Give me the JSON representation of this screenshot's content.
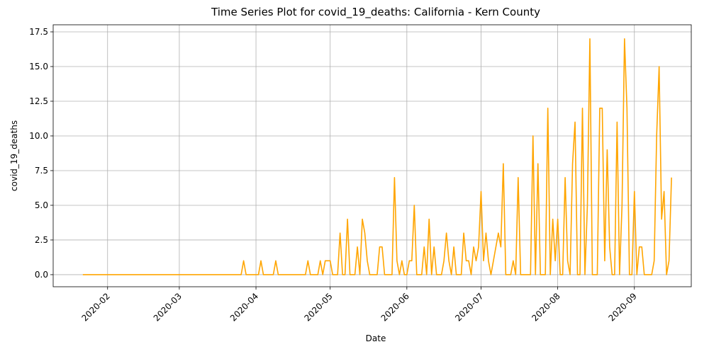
{
  "chart_data": {
    "type": "line",
    "title": "Time Series Plot for covid_19_deaths: California - Kern County",
    "x_label": "Date",
    "y_label": "covid_19_deaths",
    "x": [
      "2020-01-22",
      "2020-01-23",
      "2020-01-24",
      "2020-01-25",
      "2020-01-26",
      "2020-01-27",
      "2020-01-28",
      "2020-01-29",
      "2020-01-30",
      "2020-01-31",
      "2020-02-01",
      "2020-02-02",
      "2020-02-03",
      "2020-02-04",
      "2020-02-05",
      "2020-02-06",
      "2020-02-07",
      "2020-02-08",
      "2020-02-09",
      "2020-02-10",
      "2020-02-11",
      "2020-02-12",
      "2020-02-13",
      "2020-02-14",
      "2020-02-15",
      "2020-02-16",
      "2020-02-17",
      "2020-02-18",
      "2020-02-19",
      "2020-02-20",
      "2020-02-21",
      "2020-02-22",
      "2020-02-23",
      "2020-02-24",
      "2020-02-25",
      "2020-02-26",
      "2020-02-27",
      "2020-02-28",
      "2020-02-29",
      "2020-03-01",
      "2020-03-02",
      "2020-03-03",
      "2020-03-04",
      "2020-03-05",
      "2020-03-06",
      "2020-03-07",
      "2020-03-08",
      "2020-03-09",
      "2020-03-10",
      "2020-03-11",
      "2020-03-12",
      "2020-03-13",
      "2020-03-14",
      "2020-03-15",
      "2020-03-16",
      "2020-03-17",
      "2020-03-18",
      "2020-03-19",
      "2020-03-20",
      "2020-03-21",
      "2020-03-22",
      "2020-03-23",
      "2020-03-24",
      "2020-03-25",
      "2020-03-26",
      "2020-03-27",
      "2020-03-28",
      "2020-03-29",
      "2020-03-30",
      "2020-03-31",
      "2020-04-01",
      "2020-04-02",
      "2020-04-03",
      "2020-04-04",
      "2020-04-05",
      "2020-04-06",
      "2020-04-07",
      "2020-04-08",
      "2020-04-09",
      "2020-04-10",
      "2020-04-11",
      "2020-04-12",
      "2020-04-13",
      "2020-04-14",
      "2020-04-15",
      "2020-04-16",
      "2020-04-17",
      "2020-04-18",
      "2020-04-19",
      "2020-04-20",
      "2020-04-21",
      "2020-04-22",
      "2020-04-23",
      "2020-04-24",
      "2020-04-25",
      "2020-04-26",
      "2020-04-27",
      "2020-04-28",
      "2020-04-29",
      "2020-04-30",
      "2020-05-01",
      "2020-05-02",
      "2020-05-03",
      "2020-05-04",
      "2020-05-05",
      "2020-05-06",
      "2020-05-07",
      "2020-05-08",
      "2020-05-09",
      "2020-05-10",
      "2020-05-11",
      "2020-05-12",
      "2020-05-13",
      "2020-05-14",
      "2020-05-15",
      "2020-05-16",
      "2020-05-17",
      "2020-05-18",
      "2020-05-19",
      "2020-05-20",
      "2020-05-21",
      "2020-05-22",
      "2020-05-23",
      "2020-05-24",
      "2020-05-25",
      "2020-05-26",
      "2020-05-27",
      "2020-05-28",
      "2020-05-29",
      "2020-05-30",
      "2020-05-31",
      "2020-06-01",
      "2020-06-02",
      "2020-06-03",
      "2020-06-04",
      "2020-06-05",
      "2020-06-06",
      "2020-06-07",
      "2020-06-08",
      "2020-06-09",
      "2020-06-10",
      "2020-06-11",
      "2020-06-12",
      "2020-06-13",
      "2020-06-14",
      "2020-06-15",
      "2020-06-16",
      "2020-06-17",
      "2020-06-18",
      "2020-06-19",
      "2020-06-20",
      "2020-06-21",
      "2020-06-22",
      "2020-06-23",
      "2020-06-24",
      "2020-06-25",
      "2020-06-26",
      "2020-06-27",
      "2020-06-28",
      "2020-06-29",
      "2020-06-30",
      "2020-07-01",
      "2020-07-02",
      "2020-07-03",
      "2020-07-04",
      "2020-07-05",
      "2020-07-06",
      "2020-07-07",
      "2020-07-08",
      "2020-07-09",
      "2020-07-10",
      "2020-07-11",
      "2020-07-12",
      "2020-07-13",
      "2020-07-14",
      "2020-07-15",
      "2020-07-16",
      "2020-07-17",
      "2020-07-18",
      "2020-07-19",
      "2020-07-20",
      "2020-07-21",
      "2020-07-22",
      "2020-07-23",
      "2020-07-24",
      "2020-07-25",
      "2020-07-26",
      "2020-07-27",
      "2020-07-28",
      "2020-07-29",
      "2020-07-30",
      "2020-07-31",
      "2020-08-01",
      "2020-08-02",
      "2020-08-03",
      "2020-08-04",
      "2020-08-05",
      "2020-08-06",
      "2020-08-07",
      "2020-08-08",
      "2020-08-09",
      "2020-08-10",
      "2020-08-11",
      "2020-08-12",
      "2020-08-13",
      "2020-08-14",
      "2020-08-15",
      "2020-08-16",
      "2020-08-17",
      "2020-08-18",
      "2020-08-19",
      "2020-08-20",
      "2020-08-21",
      "2020-08-22",
      "2020-08-23",
      "2020-08-24",
      "2020-08-25",
      "2020-08-26",
      "2020-08-27",
      "2020-08-28",
      "2020-08-29",
      "2020-08-30",
      "2020-08-31",
      "2020-09-01",
      "2020-09-02",
      "2020-09-03",
      "2020-09-04",
      "2020-09-05",
      "2020-09-06",
      "2020-09-07",
      "2020-09-08",
      "2020-09-09",
      "2020-09-10",
      "2020-09-11",
      "2020-09-12",
      "2020-09-13",
      "2020-09-14",
      "2020-09-15",
      "2020-09-16"
    ],
    "series": [
      {
        "name": "covid_19_deaths",
        "color": "#ffa500",
        "values": [
          0,
          0,
          0,
          0,
          0,
          0,
          0,
          0,
          0,
          0,
          0,
          0,
          0,
          0,
          0,
          0,
          0,
          0,
          0,
          0,
          0,
          0,
          0,
          0,
          0,
          0,
          0,
          0,
          0,
          0,
          0,
          0,
          0,
          0,
          0,
          0,
          0,
          0,
          0,
          0,
          0,
          0,
          0,
          0,
          0,
          0,
          0,
          0,
          0,
          0,
          0,
          0,
          0,
          0,
          0,
          0,
          0,
          0,
          0,
          0,
          0,
          0,
          0,
          0,
          0,
          1,
          0,
          0,
          0,
          0,
          0,
          0,
          1,
          0,
          0,
          0,
          0,
          0,
          1,
          0,
          0,
          0,
          0,
          0,
          0,
          0,
          0,
          0,
          0,
          0,
          0,
          1,
          0,
          0,
          0,
          0,
          1,
          0,
          1,
          1,
          1,
          0,
          0,
          0,
          3,
          0,
          0,
          4,
          0,
          0,
          0,
          2,
          0,
          4,
          3,
          1,
          0,
          0,
          0,
          0,
          2,
          2,
          0,
          0,
          0,
          0,
          7,
          1,
          0,
          1,
          0,
          0,
          1,
          1,
          5,
          0,
          0,
          0,
          2,
          0,
          4,
          0,
          2,
          0,
          0,
          0,
          1,
          3,
          1,
          0,
          2,
          0,
          0,
          0,
          3,
          1,
          1,
          0,
          2,
          1,
          2,
          6,
          1,
          3,
          1,
          0,
          1,
          2,
          3,
          2,
          8,
          0,
          0,
          0,
          1,
          0,
          7,
          0,
          0,
          0,
          0,
          0,
          10,
          0,
          8,
          0,
          0,
          0,
          12,
          0,
          4,
          1,
          4,
          0,
          0,
          7,
          1,
          0,
          8,
          11,
          0,
          0,
          12,
          0,
          5,
          17,
          0,
          0,
          0,
          12,
          12,
          1,
          9,
          2,
          0,
          0,
          11,
          0,
          5,
          17,
          12,
          0,
          0,
          6,
          0,
          2,
          2,
          0,
          0,
          0,
          0,
          1,
          10,
          15,
          4,
          6,
          0,
          1,
          7
        ]
      }
    ],
    "xlim": [
      "2020-01-10",
      "2020-09-24"
    ],
    "xticks": [
      {
        "value": "2020-02-01",
        "label": "2020-02"
      },
      {
        "value": "2020-03-01",
        "label": "2020-03"
      },
      {
        "value": "2020-04-01",
        "label": "2020-04"
      },
      {
        "value": "2020-05-01",
        "label": "2020-05"
      },
      {
        "value": "2020-06-01",
        "label": "2020-06"
      },
      {
        "value": "2020-07-01",
        "label": "2020-07"
      },
      {
        "value": "2020-08-01",
        "label": "2020-08"
      },
      {
        "value": "2020-09-01",
        "label": "2020-09"
      }
    ],
    "ylim": [
      -0.87,
      18.01
    ],
    "yticks": [
      {
        "value": 0,
        "label": "0.0"
      },
      {
        "value": 2.5,
        "label": "2.5"
      },
      {
        "value": 5,
        "label": "5.0"
      },
      {
        "value": 7.5,
        "label": "7.5"
      },
      {
        "value": 10,
        "label": "10.0"
      },
      {
        "value": 12.5,
        "label": "12.5"
      },
      {
        "value": 15,
        "label": "15.0"
      },
      {
        "value": 17.5,
        "label": "17.5"
      }
    ],
    "grid": true
  }
}
